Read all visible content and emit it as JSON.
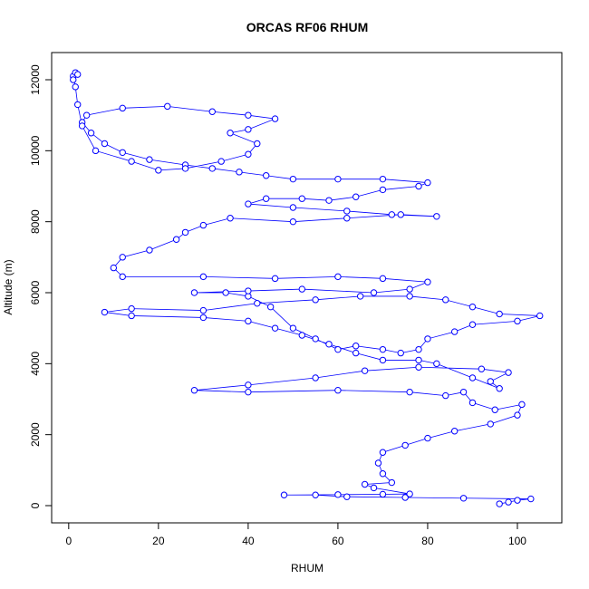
{
  "chart_data": {
    "type": "line",
    "title": "ORCAS RF06 RHUM",
    "x_label": "RHUM",
    "y_label": "Altitude (m)",
    "markers": "open-circle",
    "color": "#0000ff",
    "x": [
      96,
      98,
      100,
      103,
      88,
      75,
      62,
      55,
      48,
      60,
      70,
      76,
      68,
      66,
      72,
      70,
      69,
      70,
      75,
      80,
      86,
      94,
      100,
      101,
      95,
      90,
      88,
      84,
      76,
      60,
      40,
      28,
      40,
      55,
      66,
      78,
      92,
      98,
      94,
      96,
      90,
      82,
      78,
      70,
      64,
      58,
      52,
      46,
      40,
      30,
      14,
      8,
      14,
      30,
      42,
      55,
      65,
      76,
      84,
      90,
      96,
      105,
      100,
      90,
      86,
      80,
      78,
      74,
      70,
      64,
      60,
      55,
      50,
      45,
      40,
      35,
      28,
      40,
      52,
      68,
      76,
      80,
      70,
      60,
      46,
      30,
      12,
      10,
      12,
      18,
      24,
      26,
      30,
      36,
      50,
      62,
      74,
      82,
      72,
      62,
      50,
      40,
      44,
      52,
      58,
      64,
      70,
      78,
      80,
      70,
      60,
      50,
      44,
      38,
      32,
      26,
      18,
      12,
      8,
      5,
      3,
      4,
      12,
      22,
      32,
      40,
      46,
      40,
      36,
      42,
      40,
      34,
      26,
      20,
      14,
      6,
      3,
      2,
      1.5,
      1,
      1.5,
      2,
      1
    ],
    "values": [
      50,
      100,
      150,
      190,
      210,
      230,
      250,
      300,
      300,
      310,
      320,
      330,
      500,
      600,
      650,
      900,
      1200,
      1500,
      1700,
      1900,
      2100,
      2300,
      2550,
      2850,
      2700,
      2900,
      3200,
      3100,
      3200,
      3250,
      3200,
      3250,
      3400,
      3600,
      3800,
      3900,
      3850,
      3750,
      3500,
      3300,
      3600,
      4000,
      4100,
      4100,
      4300,
      4550,
      4800,
      5000,
      5200,
      5300,
      5350,
      5450,
      5550,
      5500,
      5700,
      5800,
      5900,
      5900,
      5800,
      5600,
      5400,
      5350,
      5200,
      5100,
      4900,
      4700,
      4400,
      4300,
      4400,
      4500,
      4400,
      4700,
      5000,
      5600,
      5900,
      6000,
      6000,
      6050,
      6100,
      6000,
      6100,
      6300,
      6400,
      6450,
      6400,
      6450,
      6450,
      6700,
      7000,
      7200,
      7500,
      7700,
      7900,
      8100,
      8000,
      8100,
      8200,
      8150,
      8200,
      8300,
      8400,
      8500,
      8650,
      8650,
      8600,
      8700,
      8900,
      9000,
      9100,
      9200,
      9200,
      9200,
      9300,
      9400,
      9500,
      9600,
      9750,
      9950,
      10200,
      10500,
      10800,
      11000,
      11200,
      11250,
      11100,
      11000,
      10900,
      10600,
      10500,
      10200,
      9900,
      9700,
      9500,
      9450,
      9700,
      10000,
      10700,
      11300,
      11800,
      12100,
      12200,
      12150,
      12000
    ],
    "xlim": [
      -3.8,
      109.9
    ],
    "ylim": [
      -485,
      12766
    ],
    "xticks": [
      0,
      20,
      40,
      60,
      80,
      100
    ],
    "yticks": [
      0,
      2000,
      4000,
      6000,
      8000,
      10000,
      12000
    ]
  }
}
